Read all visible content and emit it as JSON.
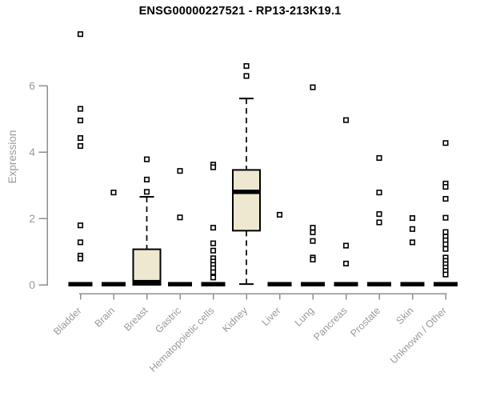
{
  "page": {
    "background": "#ffffff"
  },
  "chart_data": {
    "type": "boxplot",
    "title": "ENSG00000227521 - RP13-213K19.1",
    "ylabel": "Expression",
    "xlabel": "",
    "ylim": [
      0,
      7.8
    ],
    "yticks": [
      0,
      2,
      4,
      6
    ],
    "grid": false,
    "legend": "none",
    "colors": {
      "box_fill": "#ede8cf",
      "box_stroke": "#000000",
      "median": "#000000",
      "outlier_fill": "#ffffff",
      "axis": "#8f8f8f",
      "label": "#9a9a9a",
      "title": "#000000"
    },
    "categories": [
      "Bladder",
      "Brain",
      "Breast",
      "Gastric",
      "Hematopoietic cells",
      "Kidney",
      "Liver",
      "Lung",
      "Pancreas",
      "Prostate",
      "Skin",
      "Unknown / Other"
    ],
    "boxes": [
      {
        "label": "Bladder",
        "median": 0,
        "q1": 0,
        "q3": 0,
        "whisker_low": null,
        "whisker_high": null,
        "outliers": [
          7.55,
          5.3,
          4.95,
          4.42,
          4.18,
          1.79,
          1.28,
          0.88,
          0.79
        ]
      },
      {
        "label": "Brain",
        "median": 0,
        "q1": 0,
        "q3": 0,
        "whisker_low": null,
        "whisker_high": null,
        "outliers": [
          2.78
        ]
      },
      {
        "label": "Breast",
        "median": 0.08,
        "q1": 0,
        "q3": 1.07,
        "whisker_low": null,
        "whisker_high": 2.65,
        "outliers": [
          3.78,
          3.17,
          2.8
        ]
      },
      {
        "label": "Gastric",
        "median": 0,
        "q1": 0,
        "q3": 0,
        "whisker_low": null,
        "whisker_high": null,
        "outliers": [
          3.43,
          2.03
        ]
      },
      {
        "label": "Hematopoietic cells",
        "median": 0,
        "q1": 0,
        "q3": 0,
        "whisker_low": null,
        "whisker_high": null,
        "outliers": [
          3.62,
          3.54,
          1.72,
          1.25,
          1.03,
          0.8,
          0.7,
          0.6,
          0.5,
          0.38,
          0.22
        ]
      },
      {
        "label": "Kidney",
        "median": 2.8,
        "q1": 1.63,
        "q3": 3.46,
        "whisker_low": 0.02,
        "whisker_high": 5.61,
        "outliers": [
          6.59,
          6.29
        ]
      },
      {
        "label": "Liver",
        "median": 0,
        "q1": 0,
        "q3": 0,
        "whisker_low": null,
        "whisker_high": null,
        "outliers": [
          2.11
        ]
      },
      {
        "label": "Lung",
        "median": 0,
        "q1": 0,
        "q3": 0,
        "whisker_low": null,
        "whisker_high": null,
        "outliers": [
          5.95,
          1.72,
          1.58,
          1.32,
          0.82,
          0.76
        ]
      },
      {
        "label": "Pancreas",
        "median": 0,
        "q1": 0,
        "q3": 0,
        "whisker_low": null,
        "whisker_high": null,
        "outliers": [
          4.96,
          1.18,
          0.64
        ]
      },
      {
        "label": "Prostate",
        "median": 0,
        "q1": 0,
        "q3": 0,
        "whisker_low": null,
        "whisker_high": null,
        "outliers": [
          3.82,
          2.78,
          2.13,
          1.88
        ]
      },
      {
        "label": "Skin",
        "median": 0,
        "q1": 0,
        "q3": 0,
        "whisker_low": null,
        "whisker_high": null,
        "outliers": [
          2.01,
          1.68,
          1.28
        ]
      },
      {
        "label": "Unknown / Other",
        "median": 0,
        "q1": 0,
        "q3": 0,
        "whisker_low": null,
        "whisker_high": null,
        "outliers": [
          4.27,
          3.05,
          2.95,
          2.59,
          2.02,
          1.59,
          1.45,
          1.34,
          1.22,
          1.08,
          0.82,
          0.72,
          0.62,
          0.52,
          0.42,
          0.31
        ]
      }
    ]
  }
}
